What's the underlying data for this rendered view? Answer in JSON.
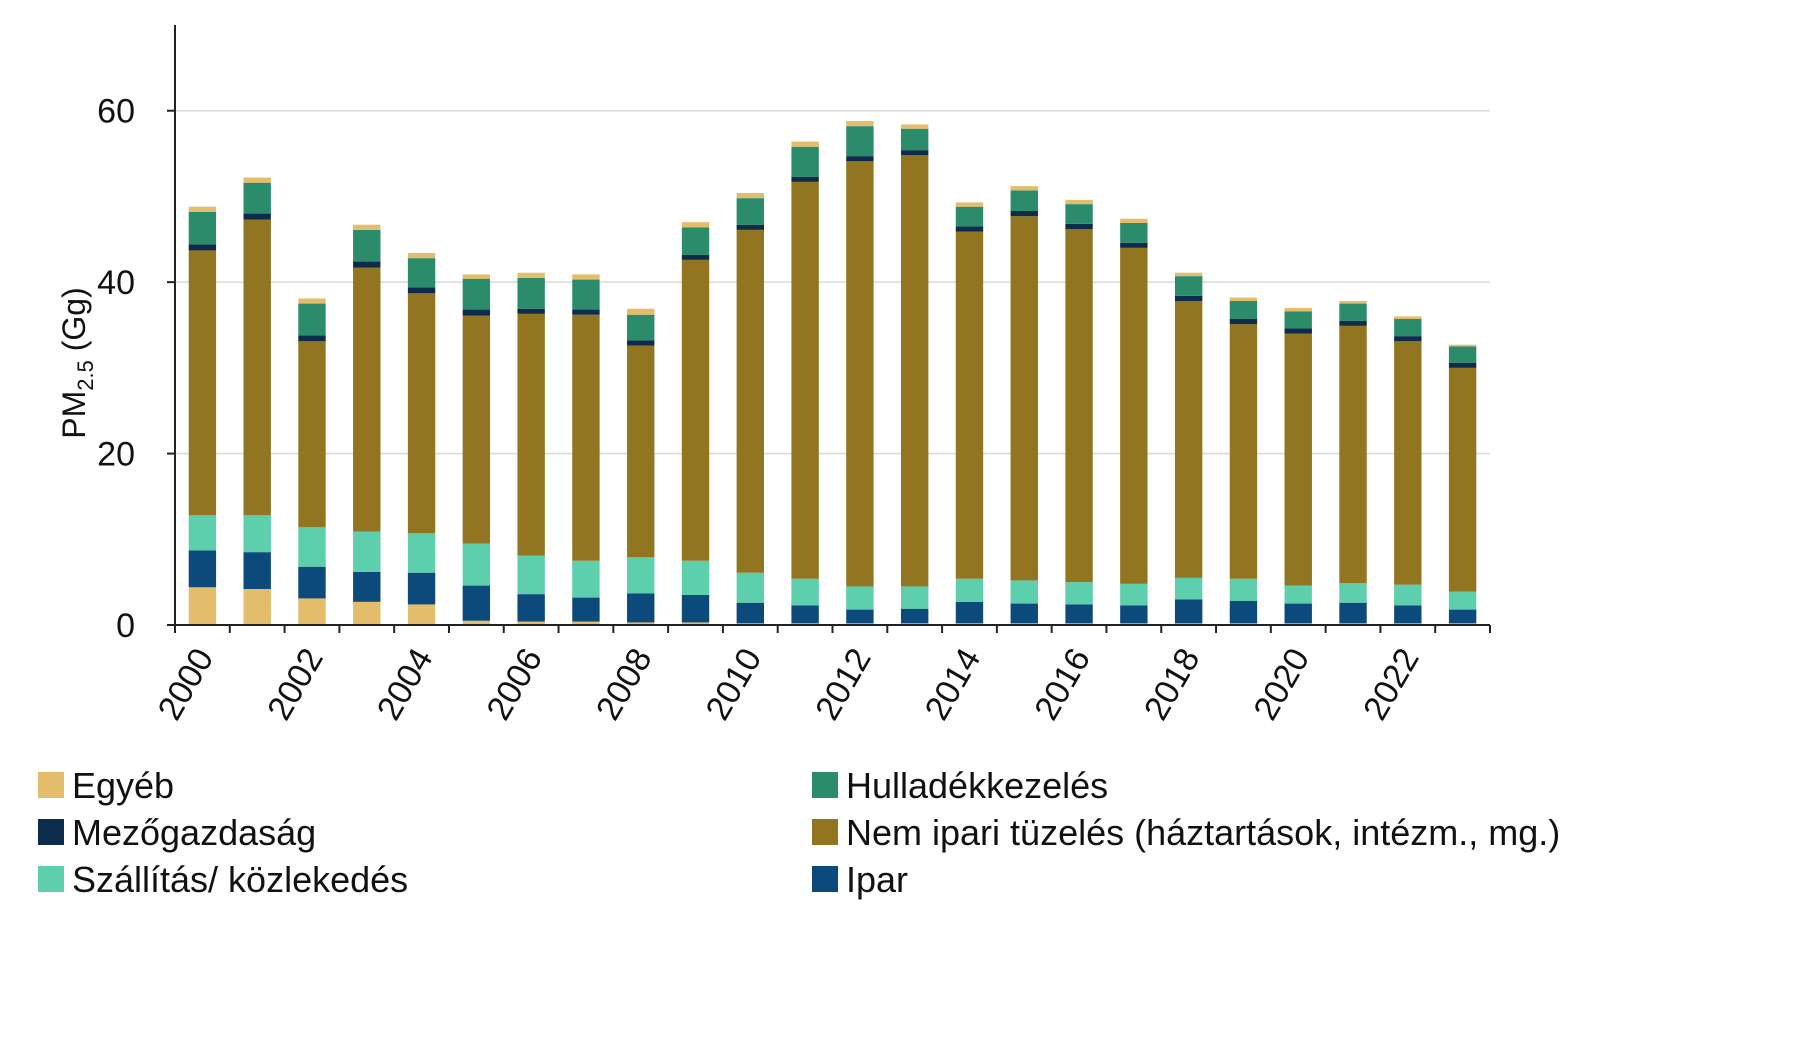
{
  "chart_data": {
    "type": "bar",
    "stacked": true,
    "title": "",
    "xlabel": "",
    "ylabel": {
      "base": "PM",
      "subscript": "2.5",
      "unit": "(Gg)"
    },
    "ylim": [
      0,
      70
    ],
    "yticks": [
      0,
      20,
      40,
      60
    ],
    "grid": true,
    "legend_position": "bottom",
    "categories": [
      "2000",
      "2001",
      "2002",
      "2003",
      "2004",
      "2005",
      "2006",
      "2007",
      "2008",
      "2009",
      "2010",
      "2011",
      "2012",
      "2013",
      "2014",
      "2015",
      "2016",
      "2017",
      "2018",
      "2019",
      "2020",
      "2021",
      "2022",
      "2023"
    ],
    "xtick_labels": [
      "2000",
      "2002",
      "2004",
      "2006",
      "2008",
      "2010",
      "2012",
      "2014",
      "2016",
      "2018",
      "2020",
      "2022"
    ],
    "series": [
      {
        "key": "egyeb_bottom",
        "legend": false,
        "color": "#e3bd6b",
        "values": [
          4.4,
          4.2,
          3.1,
          2.7,
          2.4,
          0.5,
          0.4,
          0.4,
          0.3,
          0.3,
          0.2,
          0.2,
          0.2,
          0.2,
          0.2,
          0.2,
          0.2,
          0.2,
          0.2,
          0.2,
          0.2,
          0.2,
          0.2,
          0.2
        ]
      },
      {
        "key": "ipar",
        "name": "Ipar",
        "color": "#0d4a7c",
        "values": [
          4.3,
          4.3,
          3.7,
          3.5,
          3.7,
          4.1,
          3.2,
          2.8,
          3.4,
          3.2,
          2.4,
          2.1,
          1.6,
          1.7,
          2.5,
          2.3,
          2.2,
          2.1,
          2.8,
          2.6,
          2.3,
          2.4,
          2.1,
          1.6
        ]
      },
      {
        "key": "szallitas",
        "name": "Szállítás/ közlekedés",
        "color": "#5dcfad",
        "values": [
          4.1,
          4.3,
          4.6,
          4.7,
          4.6,
          4.9,
          4.5,
          4.3,
          4.2,
          4.0,
          3.5,
          3.1,
          2.7,
          2.6,
          2.7,
          2.7,
          2.6,
          2.5,
          2.5,
          2.6,
          2.1,
          2.3,
          2.4,
          2.1
        ]
      },
      {
        "key": "nem_ipari",
        "name": "Nem ipari tüzelés (háztartások, intézm., mg.)",
        "color": "#927521",
        "values": [
          30.9,
          34.5,
          21.7,
          30.8,
          28.0,
          26.6,
          28.2,
          28.7,
          24.7,
          35.1,
          40.0,
          46.3,
          49.6,
          50.3,
          40.5,
          42.5,
          41.2,
          39.2,
          32.3,
          29.7,
          29.4,
          30.0,
          28.4,
          26.1
        ]
      },
      {
        "key": "mezogazdasag",
        "name": "Mezőgazdaság",
        "color": "#0d2b4a",
        "values": [
          0.7,
          0.7,
          0.7,
          0.7,
          0.7,
          0.7,
          0.6,
          0.6,
          0.6,
          0.6,
          0.6,
          0.6,
          0.6,
          0.6,
          0.6,
          0.6,
          0.6,
          0.6,
          0.6,
          0.6,
          0.6,
          0.6,
          0.6,
          0.6
        ]
      },
      {
        "key": "hulladek",
        "name": "Hulladékkezelés",
        "color": "#2b8c6c",
        "values": [
          3.8,
          3.6,
          3.7,
          3.7,
          3.4,
          3.6,
          3.6,
          3.5,
          3.0,
          3.2,
          3.1,
          3.5,
          3.5,
          2.5,
          2.3,
          2.4,
          2.3,
          2.3,
          2.3,
          2.1,
          2.0,
          2.0,
          2.0,
          1.9
        ]
      },
      {
        "key": "egyeb_top",
        "legend": false,
        "color": "#e3bd6b",
        "values": [
          0.6,
          0.6,
          0.6,
          0.6,
          0.6,
          0.5,
          0.6,
          0.6,
          0.7,
          0.6,
          0.6,
          0.6,
          0.6,
          0.5,
          0.5,
          0.5,
          0.5,
          0.5,
          0.4,
          0.4,
          0.4,
          0.3,
          0.3,
          0.2
        ]
      }
    ],
    "legend": [
      {
        "label": "Egyéb",
        "color": "#e3bd6b"
      },
      {
        "label": "Hulladékkezelés",
        "color": "#2b8c6c"
      },
      {
        "label": "Mezőgazdaság",
        "color": "#0d2b4a"
      },
      {
        "label": "Nem ipari tüzelés (háztartások, intézm., mg.)",
        "color": "#927521"
      },
      {
        "label": "Szállítás/ közlekedés",
        "color": "#5dcfad"
      },
      {
        "label": "Ipar",
        "color": "#0d4a7c"
      }
    ]
  }
}
